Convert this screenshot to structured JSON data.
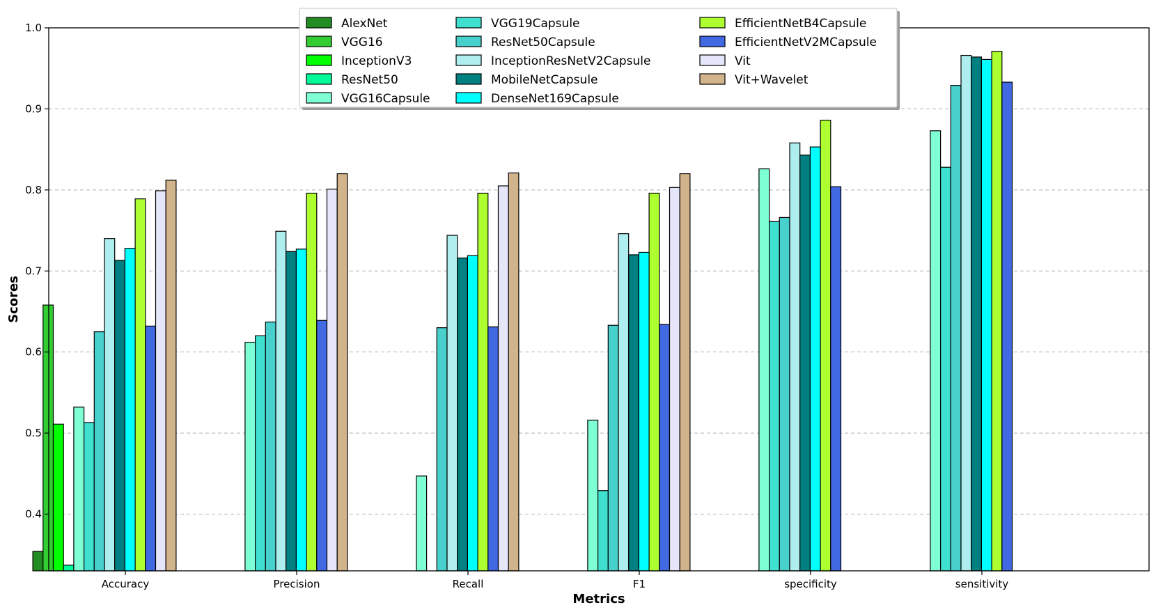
{
  "chart_data": {
    "type": "bar",
    "title": "",
    "xlabel": "Metrics",
    "ylabel": "Scores",
    "ylim": [
      0.33,
      1.0
    ],
    "yticks": [
      0.4,
      0.5,
      0.6,
      0.7,
      0.8,
      0.9,
      1.0
    ],
    "ytick_labels": [
      "0.4",
      "0.5",
      "0.6",
      "0.7",
      "0.8",
      "0.9",
      "1.0"
    ],
    "grid": "y dashed",
    "legend_position": "top-center",
    "categories": [
      "Accuracy",
      "Precision",
      "Recall",
      "F1",
      "specificity",
      "sensitivity"
    ],
    "series": [
      {
        "name": "AlexNet",
        "color": "#228b22",
        "values": [
          0.354,
          null,
          null,
          null,
          null,
          null
        ]
      },
      {
        "name": "VGG16",
        "color": "#32cd32",
        "values": [
          0.658,
          null,
          null,
          null,
          null,
          null
        ]
      },
      {
        "name": "InceptionV3",
        "color": "#00ff00",
        "values": [
          0.511,
          null,
          null,
          null,
          null,
          null
        ]
      },
      {
        "name": "ResNet50",
        "color": "#00fa9a",
        "values": [
          0.337,
          null,
          null,
          null,
          null,
          null
        ]
      },
      {
        "name": "VGG16Capsule",
        "color": "#7fffd4",
        "values": [
          0.532,
          0.612,
          0.447,
          0.516,
          0.826,
          0.873
        ]
      },
      {
        "name": "VGG19Capsule",
        "color": "#40e0d0",
        "values": [
          0.513,
          0.62,
          null,
          0.429,
          0.761,
          0.828
        ]
      },
      {
        "name": "ResNet50Capsule",
        "color": "#48d1cc",
        "values": [
          0.625,
          0.637,
          0.63,
          0.633,
          0.766,
          0.929
        ]
      },
      {
        "name": "InceptionResNetV2Capsule",
        "color": "#afeeee",
        "values": [
          0.74,
          0.749,
          0.744,
          0.746,
          0.858,
          0.966
        ]
      },
      {
        "name": "MobileNetCapsule",
        "color": "#008080",
        "values": [
          0.713,
          0.724,
          0.716,
          0.72,
          0.843,
          0.964
        ]
      },
      {
        "name": "DenseNet169Capsule",
        "color": "#00ffff",
        "values": [
          0.728,
          0.727,
          0.719,
          0.723,
          0.853,
          0.961
        ]
      },
      {
        "name": "EfficientNetB4Capsule",
        "color": "#adff2f",
        "values": [
          0.789,
          0.796,
          0.796,
          0.796,
          0.886,
          0.971
        ]
      },
      {
        "name": "EfficientNetV2MCapsule",
        "color": "#4169e1",
        "values": [
          0.632,
          0.639,
          0.631,
          0.634,
          0.804,
          0.933
        ]
      },
      {
        "name": "Vit",
        "color": "#e6e6fa",
        "values": [
          0.799,
          0.801,
          0.805,
          0.803,
          null,
          null
        ]
      },
      {
        "name": "Vit+Wavelet",
        "color": "#d2b48c",
        "values": [
          0.812,
          0.82,
          0.821,
          0.82,
          null,
          null
        ]
      }
    ]
  }
}
